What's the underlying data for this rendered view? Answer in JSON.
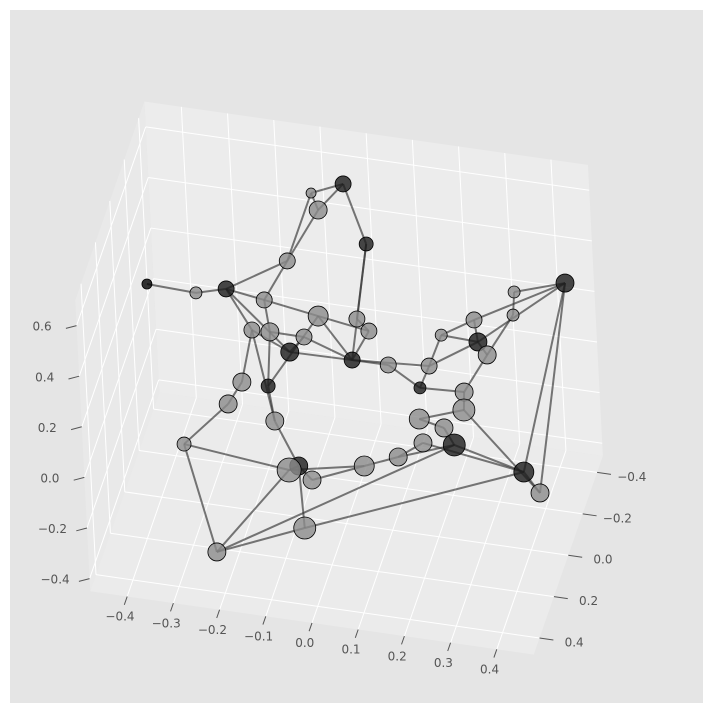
{
  "chart_data": {
    "type": "network3d",
    "xlim": [
      -0.48,
      0.48
    ],
    "ylim": [
      -0.48,
      0.48
    ],
    "zlim": [
      -0.45,
      0.7
    ],
    "xticks": [
      {
        "value": -0.4,
        "label": "−0.4"
      },
      {
        "value": -0.3,
        "label": "−0.3"
      },
      {
        "value": -0.2,
        "label": "−0.2"
      },
      {
        "value": -0.1,
        "label": "−0.1"
      },
      {
        "value": 0,
        "label": "0.0"
      },
      0.1,
      0.2,
      0.3,
      0.4
    ],
    "yticks": [
      {
        "value": -0.4,
        "label": "−0.4"
      },
      {
        "value": -0.2,
        "label": "−0.2"
      },
      {
        "value": 0,
        "label": "0.0"
      },
      0.2,
      0.4
    ],
    "zticks": [
      {
        "value": -0.4,
        "label": "−0.4"
      },
      {
        "value": -0.2,
        "label": "−0.2"
      },
      {
        "value": 0,
        "label": "0.0"
      },
      0.2,
      0.4,
      0.6
    ],
    "grid": true,
    "edge_color": "#333333",
    "nodes": {
      "x": [
        -0.032,
        -0.102,
        -0.096,
        0.017,
        -0.144,
        -0.396,
        -0.299,
        -0.25,
        -0.174,
        -0.072,
        0.455,
        0.346,
        0.273,
        0.35,
        0.276,
        0.294,
        0.01,
        0.033,
        -0.012,
        -0.136,
        -0.107,
        -0.209,
        -0.181,
        0.185,
        0.151,
        0.066,
        0.127,
        0.221,
        0.223,
        0.127,
        0.174,
        0.197,
        0.131,
        0.339,
        0.377,
        -0.234,
        -0.177,
        -0.257,
        -0.159,
        -0.34,
        -0.119,
        -0.136,
        -0.092,
        0.016,
        0.09,
        -0.083,
        -0.247
      ],
      "y": [
        -0.347,
        -0.342,
        -0.384,
        -0.317,
        -0.245,
        0.069,
        0.02,
        -0.076,
        -0.108,
        -0.185,
        -0.268,
        -0.251,
        -0.154,
        -0.202,
        -0.171,
        -0.175,
        -0.197,
        -0.207,
        -0.236,
        -0.174,
        -0.195,
        -0.135,
        -0.196,
        -0.236,
        -0.259,
        -0.237,
        -0.268,
        -0.278,
        -0.253,
        -0.24,
        -0.273,
        -0.259,
        -0.248,
        -0.296,
        -0.268,
        -0.12,
        -0.119,
        -0.068,
        -0.078,
        0.03,
        -0.118,
        -0.093,
        -0.12,
        -0.161,
        -0.167,
        0.048,
        0.216
      ],
      "z": [
        0.6,
        0.55,
        0.45,
        0.4,
        0.35,
        0.45,
        0.4,
        0.35,
        0.3,
        0.2,
        0.4,
        0.35,
        0.3,
        0.3,
        0.2,
        0.15,
        0.2,
        0.15,
        0,
        0.05,
        0.1,
        0.15,
        0.1,
        0.15,
        0,
        0,
        -0.1,
        -0.1,
        -0.15,
        -0.2,
        -0.25,
        -0.3,
        -0.3,
        -0.4,
        -0.45,
        -0.05,
        -0.05,
        -0.1,
        -0.15,
        -0.2,
        -0.35,
        -0.35,
        -0.4,
        -0.35,
        -0.3,
        -0.45,
        -0.45
      ],
      "sizes": [
        8,
        5,
        9,
        7,
        8,
        5,
        6,
        8,
        8,
        10,
        9,
        6,
        8,
        6,
        9,
        9,
        8,
        8,
        8,
        9,
        8,
        8,
        9,
        6,
        8,
        8,
        6,
        9,
        11,
        10,
        9,
        11,
        9,
        10,
        9,
        9,
        7,
        9,
        9,
        7,
        9,
        12,
        9,
        10,
        9,
        11,
        9
      ],
      "colors": [
        "#1c1c1c",
        "#8c8c8c",
        "#8c8c8c",
        "#1c1c1c",
        "#8c8c8c",
        "#000000",
        "#8c8c8c",
        "#1c1c1c",
        "#8c8c8c",
        "#8c8c8c",
        "#1c1c1c",
        "#8c8c8c",
        "#8c8c8c",
        "#8c8c8c",
        "#1c1c1c",
        "#8c8c8c",
        "#8c8c8c",
        "#8c8c8c",
        "#1c1c1c",
        "#1c1c1c",
        "#8c8c8c",
        "#8c8c8c",
        "#8c8c8c",
        "#8c8c8c",
        "#8c8c8c",
        "#8c8c8c",
        "#1c1c1c",
        "#8c8c8c",
        "#8c8c8c",
        "#8c8c8c",
        "#8c8c8c",
        "#1c1c1c",
        "#8c8c8c",
        "#1c1c1c",
        "#8c8c8c",
        "#8c8c8c",
        "#1c1c1c",
        "#8c8c8c",
        "#8c8c8c",
        "#8c8c8c",
        "#1c1c1c",
        "#8c8c8c",
        "#8c8c8c",
        "#8c8c8c",
        "#8c8c8c",
        "#8c8c8c",
        "#8c8c8c"
      ]
    },
    "edges": [
      [
        0,
        1
      ],
      [
        0,
        2
      ],
      [
        0,
        3
      ],
      [
        1,
        2
      ],
      [
        1,
        4
      ],
      [
        2,
        4
      ],
      [
        3,
        16
      ],
      [
        3,
        18
      ],
      [
        4,
        7
      ],
      [
        4,
        8
      ],
      [
        5,
        6
      ],
      [
        6,
        7
      ],
      [
        7,
        8
      ],
      [
        7,
        21
      ],
      [
        7,
        19
      ],
      [
        8,
        9
      ],
      [
        8,
        22
      ],
      [
        9,
        17
      ],
      [
        9,
        18
      ],
      [
        10,
        11
      ],
      [
        10,
        12
      ],
      [
        10,
        14
      ],
      [
        10,
        33
      ],
      [
        10,
        34
      ],
      [
        11,
        13
      ],
      [
        12,
        14
      ],
      [
        13,
        15
      ],
      [
        14,
        15
      ],
      [
        14,
        23
      ],
      [
        16,
        17
      ],
      [
        17,
        18
      ],
      [
        18,
        19
      ],
      [
        18,
        20
      ],
      [
        18,
        24
      ],
      [
        18,
        25
      ],
      [
        19,
        20
      ],
      [
        19,
        21
      ],
      [
        20,
        22
      ],
      [
        21,
        35
      ],
      [
        22,
        36
      ],
      [
        23,
        24
      ],
      [
        24,
        26
      ],
      [
        25,
        26
      ],
      [
        26,
        27
      ],
      [
        27,
        28
      ],
      [
        28,
        29
      ],
      [
        29,
        30
      ],
      [
        30,
        31
      ],
      [
        31,
        33
      ],
      [
        32,
        33
      ],
      [
        31,
        44
      ],
      [
        32,
        44
      ],
      [
        33,
        34
      ],
      [
        34,
        28
      ],
      [
        35,
        37
      ],
      [
        36,
        38
      ],
      [
        37,
        39
      ],
      [
        38,
        40
      ],
      [
        39,
        41
      ],
      [
        40,
        41
      ],
      [
        40,
        42
      ],
      [
        41,
        43
      ],
      [
        42,
        43
      ],
      [
        43,
        44
      ],
      [
        40,
        45
      ],
      [
        45,
        46
      ],
      [
        46,
        41
      ],
      [
        46,
        39
      ],
      [
        46,
        31
      ],
      [
        45,
        33
      ],
      [
        38,
        21
      ],
      [
        36,
        9
      ],
      [
        15,
        27
      ],
      [
        12,
        23
      ],
      [
        24,
        14
      ]
    ]
  }
}
